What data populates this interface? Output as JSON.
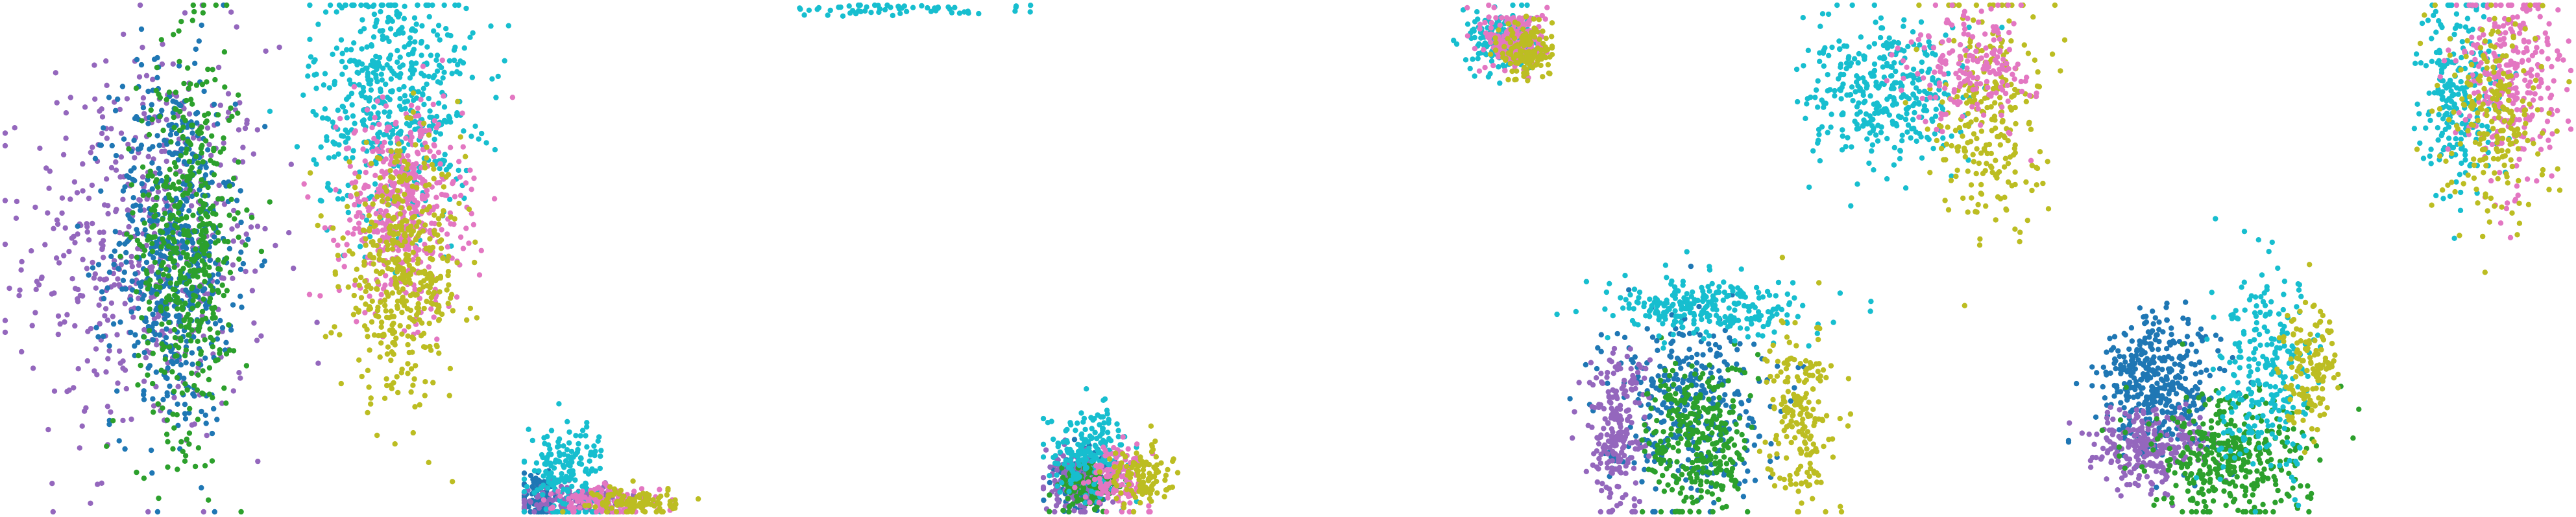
{
  "palette": {
    "blue": "#1f77b4",
    "purple": "#9467bd",
    "green": "#2ca02c",
    "cyan": "#17becf",
    "pink": "#e377c2",
    "olive": "#bcbd22"
  },
  "chart_data": [
    {
      "type": "scatter",
      "xlim": [
        0,
        100
      ],
      "ylim": [
        0,
        100
      ],
      "clusters": [
        {
          "color": "purple",
          "cx": 28,
          "cy": 52,
          "sx": 12,
          "sy": 20,
          "n": 520
        },
        {
          "color": "blue",
          "cx": 33,
          "cy": 52,
          "sx": 6,
          "sy": 18,
          "n": 560
        },
        {
          "color": "green",
          "cx": 36,
          "cy": 53,
          "sx": 5,
          "sy": 19,
          "n": 520
        },
        {
          "color": "cyan",
          "cx": 76,
          "cy": 82,
          "sx": 8,
          "sy": 12,
          "n": 520
        },
        {
          "color": "pink",
          "cx": 78,
          "cy": 60,
          "sx": 6,
          "sy": 10,
          "n": 480
        },
        {
          "color": "olive",
          "cx": 78,
          "cy": 47,
          "sx": 6,
          "sy": 12,
          "n": 460
        }
      ]
    },
    {
      "type": "scatter",
      "xlim": [
        0,
        100
      ],
      "ylim": [
        0,
        100
      ],
      "clusters": [
        {
          "color": "blue",
          "cx": 3,
          "cy": 3,
          "sx": 2,
          "sy": 2,
          "n": 90
        },
        {
          "color": "purple",
          "cx": 10,
          "cy": 2,
          "sx": 5,
          "sy": 1.5,
          "n": 140
        },
        {
          "color": "cyan",
          "cx": 8,
          "cy": 8,
          "sx": 4,
          "sy": 5,
          "n": 180
        },
        {
          "color": "pink",
          "cx": 16,
          "cy": 2,
          "sx": 5,
          "sy": 1.5,
          "n": 120
        },
        {
          "color": "olive",
          "cx": 22,
          "cy": 2,
          "sx": 4,
          "sy": 1.5,
          "n": 110
        },
        {
          "color": "cyan",
          "cx": 75,
          "cy": 99,
          "sx": 12,
          "sy": 0.6,
          "n": 60
        }
      ]
    },
    {
      "type": "scatter",
      "xlim": [
        0,
        100
      ],
      "ylim": [
        0,
        100
      ],
      "clusters": [
        {
          "color": "blue",
          "cx": 8,
          "cy": 6,
          "sx": 3,
          "sy": 3,
          "n": 140
        },
        {
          "color": "purple",
          "cx": 6,
          "cy": 6,
          "sx": 3,
          "sy": 3,
          "n": 140
        },
        {
          "color": "green",
          "cx": 9,
          "cy": 5,
          "sx": 3,
          "sy": 2.5,
          "n": 120
        },
        {
          "color": "cyan",
          "cx": 9,
          "cy": 12,
          "sx": 4,
          "sy": 4,
          "n": 200
        },
        {
          "color": "pink",
          "cx": 15,
          "cy": 7,
          "sx": 3,
          "sy": 3,
          "n": 140
        },
        {
          "color": "olive",
          "cx": 19,
          "cy": 7,
          "sx": 3,
          "sy": 3,
          "n": 110
        },
        {
          "color": "cyan",
          "cx": 90,
          "cy": 93,
          "sx": 3,
          "sy": 3,
          "n": 200
        },
        {
          "color": "pink",
          "cx": 93,
          "cy": 93,
          "sx": 3,
          "sy": 3,
          "n": 200
        },
        {
          "color": "olive",
          "cx": 95,
          "cy": 91,
          "sx": 2.5,
          "sy": 3,
          "n": 140
        }
      ]
    },
    {
      "type": "scatter",
      "xlim": [
        0,
        100
      ],
      "ylim": [
        0,
        100
      ],
      "clusters": [
        {
          "color": "blue",
          "cx": 25,
          "cy": 22,
          "sx": 8,
          "sy": 9,
          "n": 360
        },
        {
          "color": "purple",
          "cx": 12,
          "cy": 16,
          "sx": 3,
          "sy": 8,
          "n": 220
        },
        {
          "color": "green",
          "cx": 28,
          "cy": 14,
          "sx": 5,
          "sy": 8,
          "n": 320
        },
        {
          "color": "cyan",
          "cx": 30,
          "cy": 40,
          "sx": 10,
          "sy": 3,
          "n": 260
        },
        {
          "color": "olive",
          "cx": 48,
          "cy": 20,
          "sx": 3,
          "sy": 9,
          "n": 200
        },
        {
          "color": "cyan",
          "cx": 65,
          "cy": 82,
          "sx": 8,
          "sy": 7,
          "n": 360
        },
        {
          "color": "olive",
          "cx": 85,
          "cy": 80,
          "sx": 5,
          "sy": 12,
          "n": 260
        },
        {
          "color": "pink",
          "cx": 82,
          "cy": 88,
          "sx": 6,
          "sy": 6,
          "n": 180
        }
      ]
    },
    {
      "type": "scatter",
      "xlim": [
        0,
        100
      ],
      "ylim": [
        0,
        100
      ],
      "clusters": [
        {
          "color": "blue",
          "cx": 18,
          "cy": 25,
          "sx": 6,
          "sy": 7,
          "n": 400
        },
        {
          "color": "purple",
          "cx": 16,
          "cy": 13,
          "sx": 6,
          "sy": 4,
          "n": 260
        },
        {
          "color": "green",
          "cx": 32,
          "cy": 10,
          "sx": 8,
          "sy": 6,
          "n": 380
        },
        {
          "color": "cyan",
          "cx": 40,
          "cy": 26,
          "sx": 5,
          "sy": 10,
          "n": 260
        },
        {
          "color": "olive",
          "cx": 48,
          "cy": 30,
          "sx": 3,
          "sy": 6,
          "n": 140
        },
        {
          "color": "cyan",
          "cx": 78,
          "cy": 82,
          "sx": 4,
          "sy": 10,
          "n": 240
        },
        {
          "color": "pink",
          "cx": 88,
          "cy": 85,
          "sx": 5,
          "sy": 10,
          "n": 300
        },
        {
          "color": "olive",
          "cx": 85,
          "cy": 78,
          "sx": 5,
          "sy": 10,
          "n": 220
        }
      ]
    }
  ]
}
